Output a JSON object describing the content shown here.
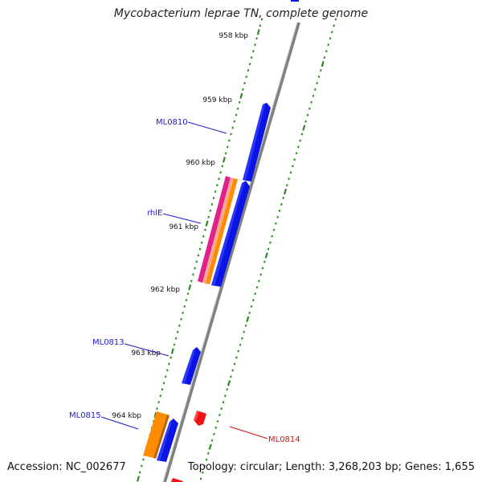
{
  "title": "Mycobacterium leprae TN, complete genome",
  "footer": {
    "accession": "Accession: NC_002677",
    "summary": "Topology: circular; Length: 3,268,203 bp; Genes: 1,655"
  },
  "colors": {
    "backbone": "#808080",
    "tick": "#2e8b22",
    "forward_gene": "#0a14e6",
    "reverse_gene": "#ee1111",
    "gene_label": "#1c1ccc",
    "reverse_label": "#cc1111",
    "cds_magenta": "#e0208c",
    "cds_orange": "#ff8c00",
    "cds_peach": "#f6a88a"
  },
  "scale_labels": [
    "958 kbp",
    "959 kbp",
    "960 kbp",
    "961 kbp",
    "962 kbp",
    "963 kbp",
    "964 kbp"
  ],
  "genes": [
    {
      "label": "ML0810",
      "strand": "forward"
    },
    {
      "label": "rhlE",
      "strand": "forward"
    },
    {
      "label": "ML0813",
      "strand": "forward"
    },
    {
      "label": "ML0815",
      "strand": "forward"
    },
    {
      "label": "ML0814",
      "strand": "reverse"
    }
  ]
}
